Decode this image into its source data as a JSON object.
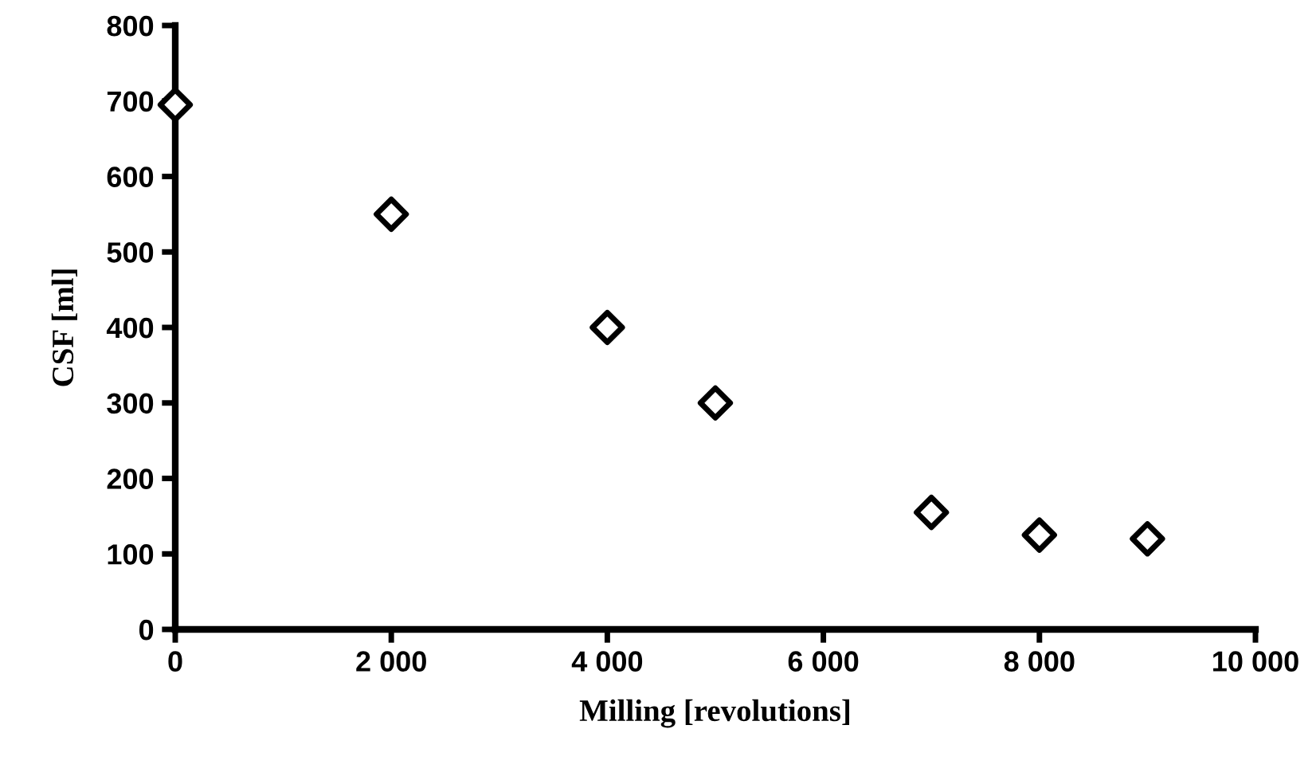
{
  "chart_data": {
    "type": "scatter",
    "xlabel": "Milling [revolutions]",
    "ylabel": "CSF [ml]",
    "x": [
      0,
      2000,
      4000,
      5000,
      7000,
      8000,
      9000
    ],
    "series": [
      {
        "color": "#000000",
        "values": [
          695,
          550,
          400,
          300,
          155,
          125,
          120
        ]
      }
    ],
    "xlim": [
      0,
      10000
    ],
    "ylim": [
      0,
      800
    ],
    "xticks": [
      {
        "value": 0,
        "label": "0"
      },
      {
        "value": 2000,
        "label": "2 000"
      },
      {
        "value": 4000,
        "label": "4 000"
      },
      {
        "value": 6000,
        "label": "6 000"
      },
      {
        "value": 8000,
        "label": "8 000"
      },
      {
        "value": 10000,
        "label": "10 000"
      }
    ],
    "yticks": [
      0,
      100,
      200,
      300,
      400,
      500,
      600,
      700,
      800
    ],
    "marker": "diamond",
    "grid": false,
    "legend": false
  }
}
